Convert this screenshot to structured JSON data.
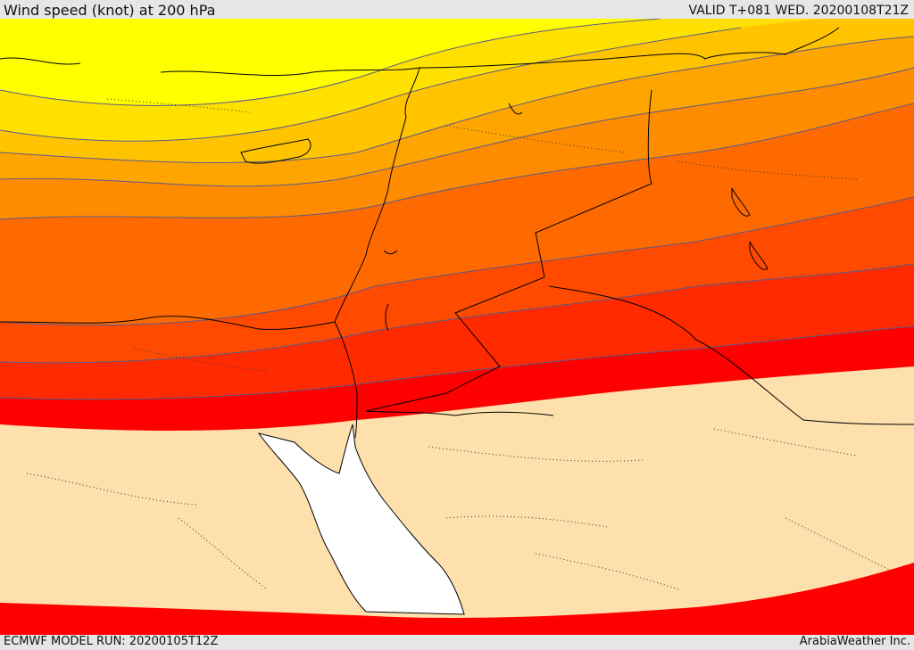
{
  "header": {
    "title": "Wind speed (knot) at 200 hPa",
    "valid": "VALID T+081 WED. 20200108T21Z"
  },
  "footer": {
    "model_run": "ECMWF MODEL RUN: 20200105T12Z",
    "credit": "ArabiaWeather Inc."
  },
  "map": {
    "field": "wind speed at 200 hPa",
    "palette": [
      "#ffff00",
      "#ffe100",
      "#ffc300",
      "#ffa500",
      "#ff8c00",
      "#ff6a00",
      "#ff4a00",
      "#ff2a00",
      "#ff0000",
      "#fde0ac"
    ],
    "sea_color": "#ffffff",
    "low_speed_color": "#fde0ac",
    "contour_color": "#5a5a8a",
    "border_color": "#000000"
  }
}
